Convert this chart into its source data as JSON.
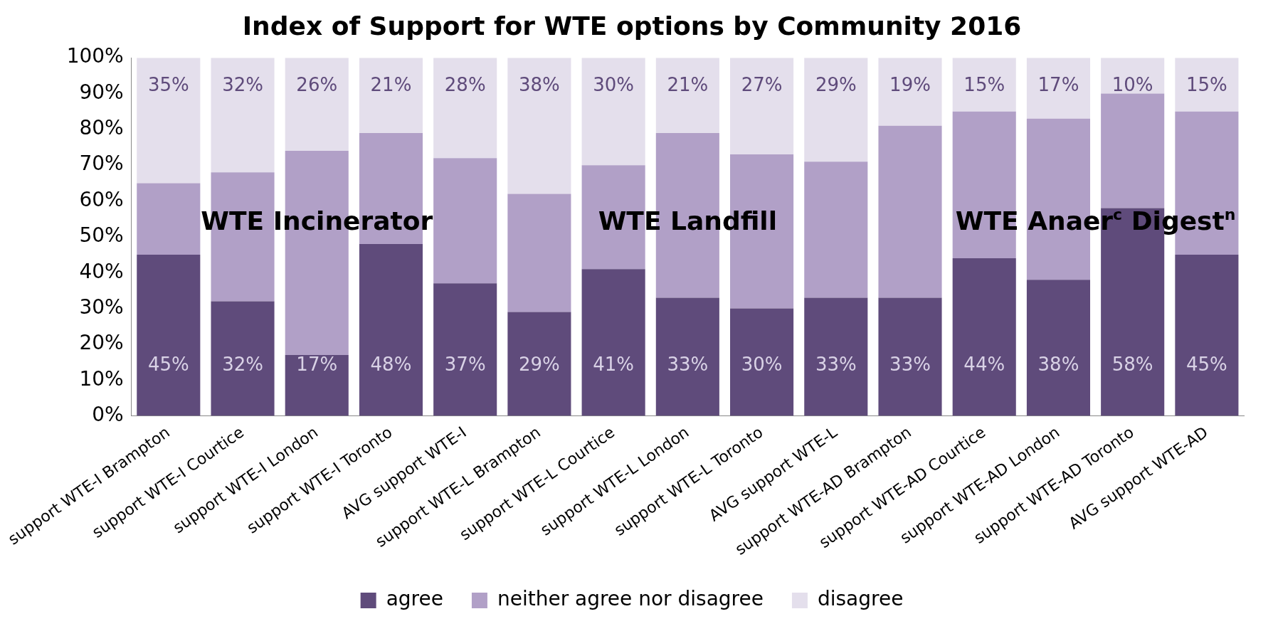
{
  "chart_data": {
    "type": "bar",
    "title": "Index of Support for WTE options by Community 2016",
    "stacked": true,
    "legend": "bottom",
    "grid": false,
    "categories": [
      "support WTE-I Brampton",
      "support WTE-I Courtice",
      "support WTE-I London",
      "support WTE-I Toronto",
      "AVG support WTE-I",
      "support WTE-L Brampton",
      "support WTE-L Courtice",
      "support WTE-L London",
      "support WTE-L Toronto",
      "AVG support WTE-L",
      "support WTE-AD Brampton",
      "support WTE-AD Courtice",
      "support WTE-AD London",
      "support WTE-AD Toronto",
      "AVG support WTE-AD"
    ],
    "series": [
      {
        "name": "agree",
        "color": "#5f4b7b",
        "values": [
          45,
          32,
          17,
          48,
          37,
          29,
          41,
          33,
          30,
          33,
          33,
          44,
          38,
          58,
          45
        ],
        "value_labels": [
          "45%",
          "32%",
          "17%",
          "48%",
          "37%",
          "29%",
          "41%",
          "33%",
          "30%",
          "33%",
          "33%",
          "44%",
          "38%",
          "58%",
          "45%"
        ]
      },
      {
        "name": "neither agree nor disagree",
        "color": "#b1a0c7",
        "values": [
          20,
          36,
          57,
          31,
          35,
          33,
          29,
          46,
          43,
          38,
          48,
          41,
          45,
          32,
          40
        ]
      },
      {
        "name": "disagree",
        "color": "#e4dfec",
        "values": [
          35,
          32,
          26,
          21,
          28,
          38,
          30,
          21,
          27,
          29,
          19,
          15,
          17,
          10,
          15
        ],
        "value_labels": [
          "35%",
          "32%",
          "26%",
          "21%",
          "28%",
          "38%",
          "30%",
          "21%",
          "27%",
          "29%",
          "19%",
          "15%",
          "17%",
          "10%",
          "15%"
        ]
      }
    ],
    "ylim": [
      0,
      100
    ],
    "yticks": [
      {
        "value": 0,
        "label": "0%"
      },
      {
        "value": 10,
        "label": "10%"
      },
      {
        "value": 20,
        "label": "20%"
      },
      {
        "value": 30,
        "label": "30%"
      },
      {
        "value": 40,
        "label": "40%"
      },
      {
        "value": 50,
        "label": "50%"
      },
      {
        "value": 60,
        "label": "60%"
      },
      {
        "value": 70,
        "label": "70%"
      },
      {
        "value": 80,
        "label": "80%"
      },
      {
        "value": 90,
        "label": "90%"
      },
      {
        "value": 100,
        "label": "100%"
      }
    ],
    "annotations": [
      "WTE Incinerator",
      "WTE Landfill",
      "WTE Anaer$^{c}$ Digest$^{n}$"
    ]
  }
}
